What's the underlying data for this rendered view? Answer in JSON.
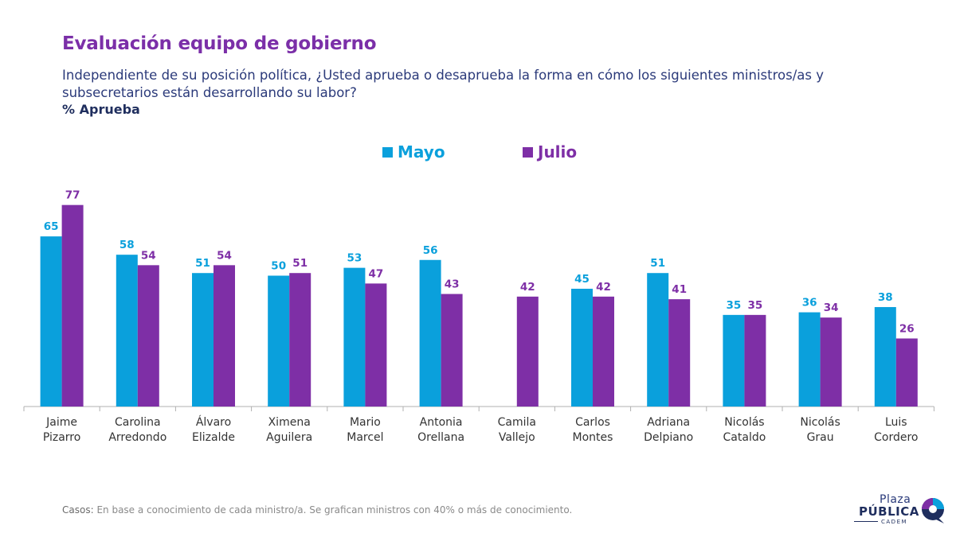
{
  "header": {
    "title": "Evaluación equipo de gobierno",
    "question": "Independiente de su posición política, ¿Usted aprueba o desaprueba la forma en cómo los siguientes ministros/as y subsecretarios están desarrollando su labor?",
    "subhead": "% Aprueba"
  },
  "chart_data": {
    "type": "bar",
    "title": "Evaluación equipo de gobierno",
    "ylabel": "% Aprueba",
    "xlabel": "",
    "ylim": [
      0,
      80
    ],
    "grid": false,
    "legend_position": "top-center",
    "categories": [
      [
        "Jaime",
        "Pizarro"
      ],
      [
        "Carolina",
        "Arredondo"
      ],
      [
        "Álvaro",
        "Elizalde"
      ],
      [
        "Ximena",
        "Aguilera"
      ],
      [
        "Mario",
        "Marcel"
      ],
      [
        "Antonia",
        "Orellana"
      ],
      [
        "Camila",
        "Vallejo"
      ],
      [
        "Carlos",
        "Montes"
      ],
      [
        "Adriana",
        "Delpiano"
      ],
      [
        "Nicolás",
        "Cataldo"
      ],
      [
        "Nicolás",
        "Grau"
      ],
      [
        "Luis",
        "Cordero"
      ]
    ],
    "series": [
      {
        "name": "Mayo",
        "color": "#0aa0dc",
        "values": [
          65,
          58,
          51,
          50,
          53,
          56,
          null,
          45,
          51,
          35,
          36,
          38
        ]
      },
      {
        "name": "Julio",
        "color": "#7e2fa6",
        "values": [
          77,
          54,
          54,
          51,
          47,
          43,
          42,
          42,
          41,
          35,
          34,
          26
        ]
      }
    ]
  },
  "footnote": {
    "label": "Casos:",
    "text": "En base a conocimiento de cada ministro/a. Se grafican ministros con 40% o más de conocimiento."
  },
  "logo": {
    "line1": "Plaza",
    "line2": "PÚBLICA",
    "line3": "CADEM"
  }
}
